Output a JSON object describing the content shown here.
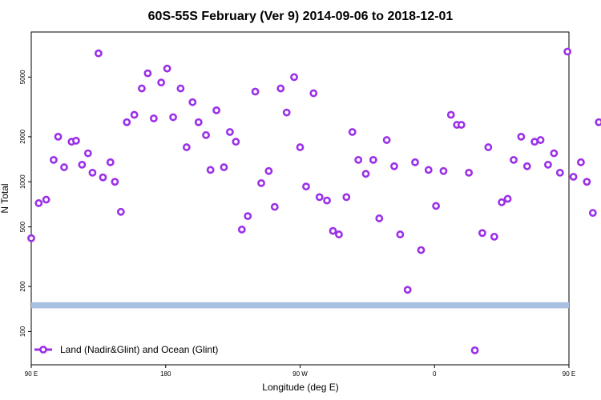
{
  "chart_data": {
    "type": "scatter",
    "title": "60S-55S February (Ver 9)   2014-09-06 to 2018-12-01",
    "xlabel": "Longitude (deg E)",
    "ylabel": "N Total",
    "xlim": [
      90,
      450
    ],
    "ylim": [
      60,
      10000
    ],
    "y_scale": "log",
    "grid": false,
    "x_ticks": [
      {
        "value": 90,
        "label": "90 E"
      },
      {
        "value": 180,
        "label": "180"
      },
      {
        "value": 270,
        "label": "90 W"
      },
      {
        "value": 360,
        "label": "0"
      },
      {
        "value": 450,
        "label": "90 E"
      }
    ],
    "right_ticks": [
      {
        "value": 360,
        "label": "0"
      },
      {
        "value": 450,
        "label": "90 E"
      },
      {
        "value": 540,
        "label": "180"
      }
    ],
    "y_ticks": [
      {
        "value": 100,
        "label": "100"
      },
      {
        "value": 200,
        "label": "200"
      },
      {
        "value": 500,
        "label": "500"
      },
      {
        "value": 1000,
        "label": "1000"
      },
      {
        "value": 2000,
        "label": "2000"
      },
      {
        "value": 5000,
        "label": "5000"
      }
    ],
    "band": {
      "y_low": 143,
      "y_high": 157,
      "color": "#a8bfe0"
    },
    "legend": {
      "label": "Land (Nadir&Glint) and Ocean (Glint)",
      "position": "bottom-left"
    },
    "series": [
      {
        "name": "Land (Nadir&Glint) and Ocean (Glint)",
        "color": "#9b30e8",
        "points": [
          [
            90,
            420
          ],
          [
            95,
            720
          ],
          [
            100,
            760
          ],
          [
            105,
            1400
          ],
          [
            108,
            2000
          ],
          [
            112,
            1250
          ],
          [
            117,
            1850
          ],
          [
            120,
            1880
          ],
          [
            124,
            1300
          ],
          [
            128,
            1550
          ],
          [
            131,
            1150
          ],
          [
            135,
            7200
          ],
          [
            138,
            1070
          ],
          [
            143,
            1350
          ],
          [
            146,
            1000
          ],
          [
            150,
            630
          ],
          [
            154,
            2500
          ],
          [
            159,
            2800
          ],
          [
            164,
            4200
          ],
          [
            168,
            5300
          ],
          [
            172,
            2650
          ],
          [
            177,
            4600
          ],
          [
            181,
            5700
          ],
          [
            185,
            2700
          ],
          [
            190,
            4200
          ],
          [
            194,
            1700
          ],
          [
            198,
            3400
          ],
          [
            202,
            2500
          ],
          [
            207,
            2050
          ],
          [
            210,
            1200
          ],
          [
            214,
            3000
          ],
          [
            219,
            1250
          ],
          [
            223,
            2150
          ],
          [
            227,
            1850
          ],
          [
            231,
            480
          ],
          [
            235,
            590
          ],
          [
            240,
            4000
          ],
          [
            244,
            980
          ],
          [
            249,
            1180
          ],
          [
            253,
            680
          ],
          [
            257,
            4200
          ],
          [
            261,
            2900
          ],
          [
            266,
            5000
          ],
          [
            270,
            1700
          ],
          [
            274,
            930
          ],
          [
            279,
            3900
          ],
          [
            283,
            790
          ],
          [
            288,
            750
          ],
          [
            292,
            470
          ],
          [
            296,
            445
          ],
          [
            301,
            790
          ],
          [
            305,
            2150
          ],
          [
            309,
            1400
          ],
          [
            314,
            1130
          ],
          [
            319,
            1400
          ],
          [
            323,
            570
          ],
          [
            328,
            1900
          ],
          [
            333,
            1270
          ],
          [
            337,
            445
          ],
          [
            342,
            190
          ],
          [
            347,
            1350
          ],
          [
            351,
            350
          ],
          [
            356,
            1200
          ],
          [
            361,
            690
          ],
          [
            366,
            1180
          ],
          [
            371,
            2800
          ],
          [
            375,
            2400
          ],
          [
            378,
            2400
          ],
          [
            383,
            1150
          ],
          [
            387,
            75
          ],
          [
            392,
            455
          ],
          [
            396,
            1700
          ],
          [
            400,
            430
          ],
          [
            405,
            730
          ],
          [
            409,
            770
          ],
          [
            413,
            1400
          ],
          [
            418,
            2000
          ],
          [
            422,
            1270
          ],
          [
            427,
            1850
          ],
          [
            431,
            1900
          ],
          [
            436,
            1300
          ],
          [
            440,
            1550
          ],
          [
            444,
            1150
          ],
          [
            449,
            7400
          ],
          [
            453,
            1080
          ],
          [
            458,
            1350
          ],
          [
            462,
            1000
          ],
          [
            466,
            620
          ],
          [
            470,
            2500
          ],
          [
            475,
            2800
          ]
        ]
      }
    ]
  }
}
